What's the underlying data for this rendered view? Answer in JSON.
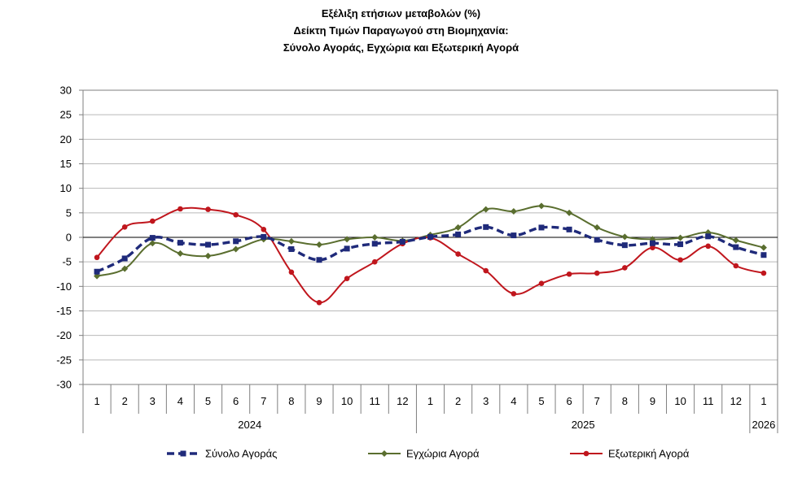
{
  "chart_data": {
    "type": "line",
    "title": [
      "Εξέλιξη ετήσιων μεταβολών (%)",
      "Δείκτη Τιμών Παραγωγού στη Βιομηχανία:",
      "Σύνολο Αγοράς, Εγχώρια και Εξωτερική Αγορά"
    ],
    "xlabel": "",
    "ylabel": "",
    "ylim": [
      -30,
      30
    ],
    "yticks": [
      "30",
      "25",
      "20",
      "15",
      "10",
      "5",
      "0",
      "-5",
      "-10",
      "-15",
      "-20",
      "-25",
      "-30"
    ],
    "grid": true,
    "categories": [
      "1",
      "2",
      "3",
      "4",
      "5",
      "6",
      "7",
      "8",
      "9",
      "10",
      "11",
      "12",
      "1",
      "2",
      "3",
      "4",
      "5",
      "6",
      "7",
      "8",
      "9",
      "10",
      "11",
      "12",
      "1"
    ],
    "groups": [
      {
        "label": "2024",
        "count": 12
      },
      {
        "label": "2025",
        "count": 12
      },
      {
        "label": "2026",
        "count": 1
      }
    ],
    "series": [
      {
        "name": "Σύνολο Αγοράς",
        "color": "#1f2a7a",
        "style": "dashed-square",
        "values": [
          -7.0,
          -4.3,
          -0.1,
          -1.1,
          -1.5,
          -0.8,
          0.1,
          -2.4,
          -4.6,
          -2.3,
          -1.3,
          -0.9,
          0.1,
          0.6,
          2.1,
          0.4,
          2.0,
          1.6,
          -0.5,
          -1.6,
          -1.2,
          -1.4,
          0.2,
          -2.0,
          -3.6
        ]
      },
      {
        "name": "Εγχώρια Αγορά",
        "color": "#5a6e2f",
        "style": "solid-diamond",
        "values": [
          -7.9,
          -6.4,
          -1.2,
          -3.3,
          -3.8,
          -2.4,
          -0.4,
          -0.8,
          -1.5,
          -0.4,
          0.0,
          -0.7,
          0.5,
          2.0,
          5.7,
          5.3,
          6.4,
          5.0,
          2.0,
          0.1,
          -0.4,
          -0.1,
          1.0,
          -0.6,
          -2.1
        ]
      },
      {
        "name": "Εξωτερική Αγορά",
        "color": "#c0161d",
        "style": "solid-circle",
        "values": [
          -4.1,
          2.1,
          3.3,
          5.8,
          5.7,
          4.6,
          1.6,
          -7.1,
          -13.3,
          -8.4,
          -5.0,
          -1.3,
          -0.1,
          -3.4,
          -6.8,
          -11.5,
          -9.4,
          -7.5,
          -7.3,
          -6.2,
          -2.1,
          -4.6,
          -1.8,
          -5.8,
          -7.3
        ]
      }
    ],
    "legend_position": "bottom"
  }
}
